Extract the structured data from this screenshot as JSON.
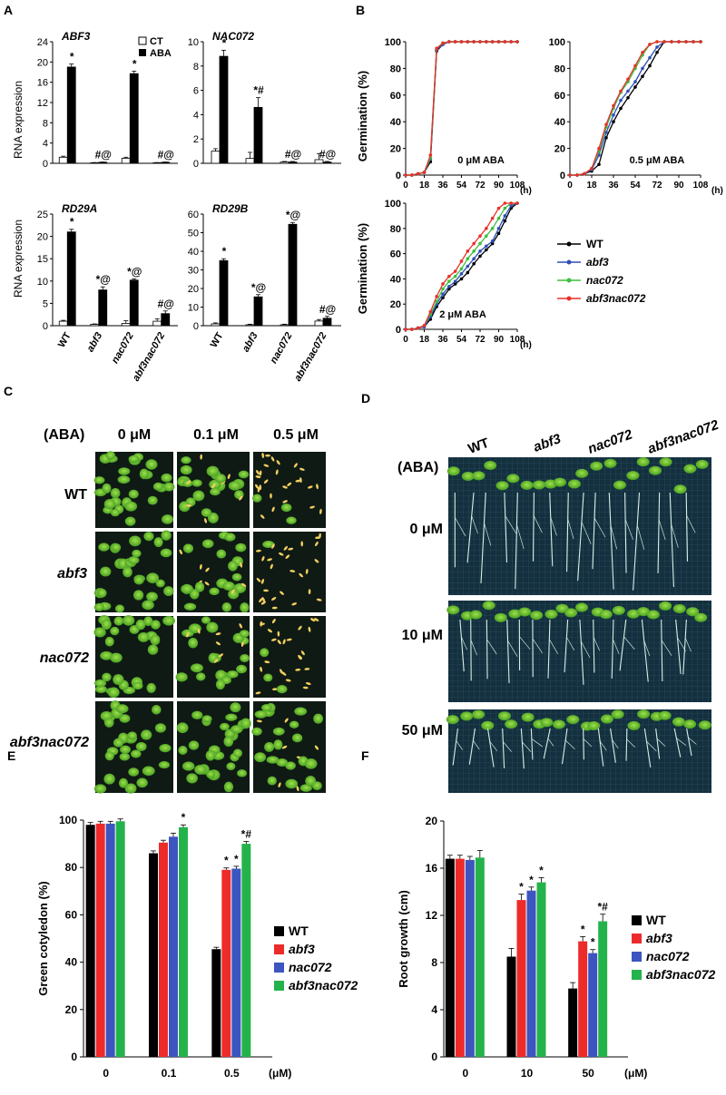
{
  "panels": {
    "A": "A",
    "B": "B",
    "C": "C",
    "D": "D",
    "E": "E",
    "F": "F"
  },
  "colors": {
    "WT": "#000000",
    "abf3": "#2d4fb8",
    "nac072": "#3cbf3c",
    "abf3nac072": "#e8302a",
    "bar_WT": "#000000",
    "bar_abf3": "#ee2b2b",
    "bar_nac072": "#3c55c0",
    "bar_abf3nac072": "#24b34b"
  },
  "panel_A": {
    "legend": {
      "ct": "CT",
      "aba": "ABA"
    },
    "ylabel": "RNA expression",
    "genotypes": [
      "WT",
      "abf3",
      "nac072",
      "abf3nac072"
    ]
  },
  "panel_B": {
    "ylabel": "Germination (%)",
    "xunit": "(h)",
    "legend": [
      "WT",
      "abf3",
      "nac072",
      "abf3nac072"
    ]
  },
  "panel_C": {
    "aba_label": "(ABA)",
    "concentrations": [
      "0 μM",
      "0.1 μM",
      "0.5 μM"
    ],
    "genotypes": [
      "WT",
      "abf3",
      "nac072",
      "abf3nac072"
    ]
  },
  "panel_D": {
    "aba_label": "(ABA)",
    "genotypes": [
      "WT",
      "abf3",
      "nac072",
      "abf3nac072"
    ],
    "concentrations": [
      "0 μM",
      "10 μM",
      "50 μM"
    ]
  },
  "chart_data": [
    {
      "panel": "A",
      "type": "bar",
      "title": "ABF3",
      "categories": [
        "WT",
        "abf3",
        "nac072",
        "abf3nac072"
      ],
      "series": [
        {
          "name": "CT",
          "values": [
            1.2,
            0.1,
            1.0,
            0.1
          ],
          "errors": [
            0.2,
            0.05,
            0.2,
            0.05
          ]
        },
        {
          "name": "ABA",
          "values": [
            19.0,
            0.2,
            17.7,
            0.2
          ],
          "errors": [
            0.6,
            0.05,
            0.5,
            0.05
          ]
        }
      ],
      "annotations": [
        "*",
        "#@",
        "*",
        "#@"
      ],
      "ylim": [
        0,
        24
      ],
      "yticks": [
        0,
        4,
        8,
        12,
        16,
        20,
        24
      ]
    },
    {
      "panel": "A",
      "type": "bar",
      "title": "NAC072",
      "categories": [
        "WT",
        "abf3",
        "nac072",
        "abf3nac072"
      ],
      "series": [
        {
          "name": "CT",
          "values": [
            1.0,
            0.4,
            0.1,
            0.3
          ],
          "errors": [
            0.2,
            0.5,
            0.05,
            0.5
          ]
        },
        {
          "name": "ABA",
          "values": [
            8.8,
            4.6,
            0.1,
            0.1
          ],
          "errors": [
            0.5,
            0.8,
            0.05,
            0.05
          ]
        }
      ],
      "annotations": [
        "*",
        "*#",
        "#@",
        "#@"
      ],
      "ylim": [
        0,
        10
      ],
      "yticks": [
        0,
        2,
        4,
        6,
        8,
        10
      ]
    },
    {
      "panel": "A",
      "type": "bar",
      "title": "RD29A",
      "categories": [
        "WT",
        "abf3",
        "nac072",
        "abf3nac072"
      ],
      "series": [
        {
          "name": "CT",
          "values": [
            1.0,
            0.3,
            0.5,
            1.0
          ],
          "errors": [
            0.2,
            0.1,
            0.6,
            0.5
          ]
        },
        {
          "name": "ABA",
          "values": [
            21.0,
            8.0,
            10.2,
            2.7
          ],
          "errors": [
            0.6,
            0.7,
            0.3,
            0.6
          ]
        }
      ],
      "annotations": [
        "*",
        "*@",
        "*@",
        "#@"
      ],
      "ylim": [
        0,
        25
      ],
      "yticks": [
        0,
        5,
        10,
        15,
        20,
        25
      ]
    },
    {
      "panel": "A",
      "type": "bar",
      "title": "RD29B",
      "categories": [
        "WT",
        "abf3",
        "nac072",
        "abf3nac072"
      ],
      "series": [
        {
          "name": "CT",
          "values": [
            1.0,
            0.5,
            0.5,
            2.5
          ],
          "errors": [
            0.5,
            0.3,
            0.3,
            0.8
          ]
        },
        {
          "name": "ABA",
          "values": [
            35.0,
            15.5,
            54.5,
            4.0
          ],
          "errors": [
            1.0,
            1.2,
            1.0,
            1.0
          ]
        }
      ],
      "annotations": [
        "*",
        "*@",
        "*@",
        "#@"
      ],
      "ylim": [
        0,
        60
      ],
      "yticks": [
        0,
        10,
        20,
        30,
        40,
        50,
        60
      ]
    },
    {
      "panel": "B",
      "type": "line",
      "annotation": "0 μM ABA",
      "xlim": [
        0,
        108
      ],
      "xticks": [
        0,
        18,
        36,
        54,
        72,
        90,
        108
      ],
      "ylim": [
        0,
        100
      ],
      "yticks": [
        0,
        20,
        40,
        60,
        80,
        100
      ],
      "x": [
        0,
        6,
        12,
        18,
        24,
        30,
        36,
        42,
        48,
        54,
        60,
        66,
        72,
        78,
        84,
        90,
        96,
        102,
        108
      ],
      "series": [
        {
          "name": "WT",
          "values": [
            0,
            0,
            1,
            2,
            10,
            93,
            98,
            100,
            100,
            100,
            100,
            100,
            100,
            100,
            100,
            100,
            100,
            100,
            100
          ]
        },
        {
          "name": "abf3",
          "values": [
            0,
            0,
            1,
            2,
            12,
            94,
            98,
            100,
            100,
            100,
            100,
            100,
            100,
            100,
            100,
            100,
            100,
            100,
            100
          ]
        },
        {
          "name": "nac072",
          "values": [
            0,
            0,
            1,
            2,
            13,
            95,
            99,
            100,
            100,
            100,
            100,
            100,
            100,
            100,
            100,
            100,
            100,
            100,
            100
          ]
        },
        {
          "name": "abf3nac072",
          "values": [
            0,
            0,
            1,
            2,
            15,
            95,
            99,
            100,
            100,
            100,
            100,
            100,
            100,
            100,
            100,
            100,
            100,
            100,
            100
          ]
        }
      ]
    },
    {
      "panel": "B",
      "type": "line",
      "annotation": "0.5 μM ABA",
      "xlim": [
        0,
        108
      ],
      "xticks": [
        0,
        18,
        36,
        54,
        72,
        90,
        108
      ],
      "ylim": [
        0,
        100
      ],
      "yticks": [
        0,
        20,
        40,
        60,
        80,
        100
      ],
      "x": [
        0,
        6,
        12,
        18,
        24,
        30,
        36,
        42,
        48,
        54,
        60,
        66,
        72,
        78,
        84,
        90,
        96,
        102,
        108
      ],
      "series": [
        {
          "name": "WT",
          "values": [
            0,
            0,
            1,
            3,
            8,
            28,
            40,
            50,
            58,
            66,
            74,
            82,
            92,
            100,
            100,
            100,
            100,
            100,
            100
          ]
        },
        {
          "name": "abf3",
          "values": [
            0,
            0,
            1,
            4,
            15,
            32,
            45,
            56,
            63,
            70,
            80,
            88,
            96,
            100,
            100,
            100,
            100,
            100,
            100
          ]
        },
        {
          "name": "nac072",
          "values": [
            0,
            0,
            1,
            5,
            18,
            36,
            50,
            62,
            70,
            80,
            90,
            98,
            100,
            100,
            100,
            100,
            100,
            100,
            100
          ]
        },
        {
          "name": "abf3nac072",
          "values": [
            0,
            0,
            1,
            5,
            20,
            38,
            52,
            63,
            72,
            82,
            92,
            98,
            100,
            100,
            100,
            100,
            100,
            100,
            100
          ]
        }
      ]
    },
    {
      "panel": "B",
      "type": "line",
      "annotation": "2 μM ABA",
      "xlim": [
        0,
        108
      ],
      "xticks": [
        0,
        18,
        36,
        54,
        72,
        90,
        108
      ],
      "ylim": [
        0,
        100
      ],
      "yticks": [
        0,
        20,
        40,
        60,
        80,
        100
      ],
      "x": [
        0,
        6,
        12,
        18,
        24,
        30,
        36,
        42,
        48,
        54,
        60,
        66,
        72,
        78,
        84,
        90,
        96,
        102,
        108
      ],
      "series": [
        {
          "name": "WT",
          "values": [
            0,
            0,
            1,
            2,
            8,
            18,
            25,
            32,
            36,
            40,
            45,
            52,
            58,
            63,
            68,
            76,
            86,
            96,
            100
          ]
        },
        {
          "name": "abf3",
          "values": [
            0,
            0,
            1,
            2,
            10,
            20,
            28,
            34,
            38,
            44,
            50,
            56,
            62,
            66,
            70,
            80,
            90,
            98,
            100
          ]
        },
        {
          "name": "nac072",
          "values": [
            0,
            0,
            1,
            3,
            12,
            22,
            32,
            38,
            42,
            48,
            56,
            62,
            68,
            74,
            80,
            88,
            96,
            100,
            100
          ]
        },
        {
          "name": "abf3nac072",
          "values": [
            0,
            0,
            1,
            3,
            14,
            26,
            36,
            42,
            46,
            54,
            62,
            68,
            74,
            80,
            88,
            96,
            100,
            100,
            100
          ]
        }
      ]
    },
    {
      "panel": "E",
      "type": "bar",
      "ylabel": "Green cotyledon (%)",
      "xunit": "(μM)",
      "categories": [
        "0",
        "0.1",
        "0.5"
      ],
      "ylim": [
        0,
        100
      ],
      "yticks": [
        0,
        20,
        40,
        60,
        80,
        100
      ],
      "series": [
        {
          "name": "WT",
          "values": [
            98,
            86,
            45.5
          ],
          "errors": [
            1,
            1,
            0.8
          ]
        },
        {
          "name": "abf3",
          "values": [
            98.5,
            90.5,
            79
          ],
          "errors": [
            1,
            1,
            0.8
          ]
        },
        {
          "name": "nac072",
          "values": [
            98.5,
            93,
            79.5
          ],
          "errors": [
            1,
            1.5,
            1
          ]
        },
        {
          "name": "abf3nac072",
          "values": [
            99.5,
            97,
            90
          ],
          "errors": [
            1,
            1,
            1
          ]
        }
      ],
      "annotations": [
        {
          "category": "0.1",
          "series": "abf3nac072",
          "text": "*"
        },
        {
          "category": "0.5",
          "series": "abf3",
          "text": "*"
        },
        {
          "category": "0.5",
          "series": "nac072",
          "text": "*"
        },
        {
          "category": "0.5",
          "series": "abf3nac072",
          "text": "*#"
        }
      ]
    },
    {
      "panel": "F",
      "type": "bar",
      "ylabel": "Root growth (cm)",
      "xunit": "(μM)",
      "categories": [
        "0",
        "10",
        "50"
      ],
      "ylim": [
        0,
        20
      ],
      "yticks": [
        0,
        4,
        8,
        12,
        16,
        20
      ],
      "series": [
        {
          "name": "WT",
          "values": [
            16.8,
            8.5,
            5.8
          ],
          "errors": [
            0.3,
            0.7,
            0.5
          ]
        },
        {
          "name": "abf3",
          "values": [
            16.8,
            13.3,
            9.8
          ],
          "errors": [
            0.3,
            0.5,
            0.4
          ]
        },
        {
          "name": "nac072",
          "values": [
            16.7,
            14.1,
            8.8
          ],
          "errors": [
            0.3,
            0.3,
            0.3
          ]
        },
        {
          "name": "abf3nac072",
          "values": [
            16.9,
            14.8,
            11.5
          ],
          "errors": [
            0.6,
            0.4,
            0.6
          ]
        }
      ],
      "annotations": [
        {
          "category": "10",
          "series": "abf3",
          "text": "*"
        },
        {
          "category": "10",
          "series": "nac072",
          "text": "*"
        },
        {
          "category": "10",
          "series": "abf3nac072",
          "text": "*"
        },
        {
          "category": "50",
          "series": "abf3",
          "text": "*"
        },
        {
          "category": "50",
          "series": "nac072",
          "text": "*"
        },
        {
          "category": "50",
          "series": "abf3nac072",
          "text": "*#"
        }
      ]
    }
  ]
}
